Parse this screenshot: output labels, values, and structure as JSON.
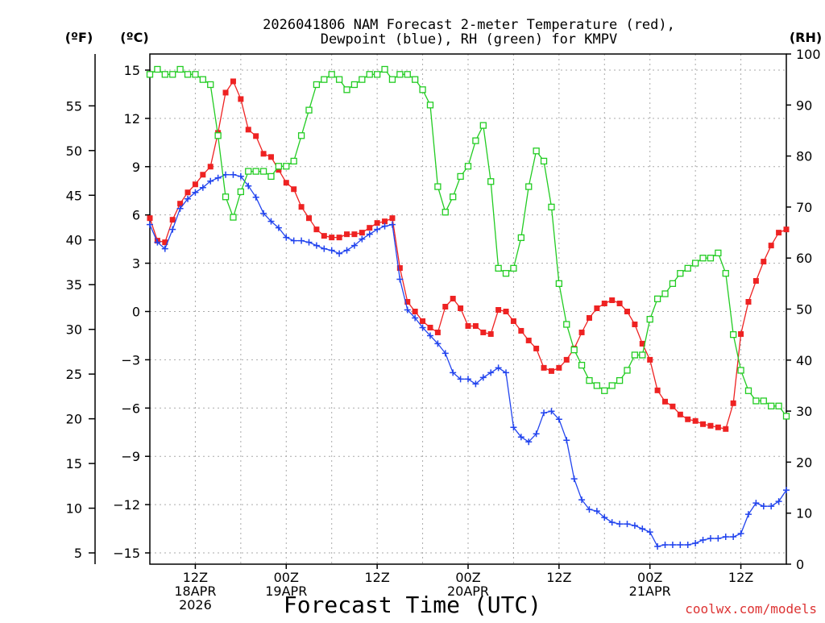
{
  "chart_data": {
    "type": "line",
    "title_line1": "2026041806 NAM Forecast 2-meter Temperature (red),",
    "title_line2": "Dewpoint (blue), RH (green) for KMPV",
    "unit_labels": {
      "fahrenheit": "(ºF)",
      "celsius": "(ºC)",
      "rh": "(RH)"
    },
    "xlabel": "Forecast Time (UTC)",
    "watermark": "coolwx.com/models",
    "x_range_hours": [
      0,
      84
    ],
    "celsius_axis": {
      "range": [
        -15.7,
        16.0
      ],
      "ticks": [
        15,
        12,
        9,
        6,
        3,
        0,
        -3,
        -6,
        -9,
        -12,
        -15
      ],
      "tick_labels": [
        "15",
        "12",
        "9",
        "6",
        "3",
        "0",
        "−3",
        "−6",
        "−9",
        "−12",
        "−15"
      ]
    },
    "fahrenheit_axis": {
      "ticks": [
        55,
        50,
        45,
        40,
        35,
        30,
        25,
        20,
        15,
        10,
        5
      ],
      "tick_labels": [
        "55",
        "50",
        "45",
        "40",
        "35",
        "30",
        "25",
        "20",
        "15",
        "10",
        "5"
      ]
    },
    "rh_axis": {
      "range": [
        0,
        100
      ],
      "ticks": [
        100,
        90,
        80,
        70,
        60,
        50,
        40,
        30,
        20,
        10,
        0
      ],
      "tick_labels": [
        "100",
        "90",
        "80",
        "70",
        "60",
        "50",
        "40",
        "30",
        "20",
        "10",
        "0"
      ]
    },
    "x_ticks": [
      {
        "hour": 6,
        "lines": [
          "12Z",
          "18APR",
          "2026"
        ]
      },
      {
        "hour": 18,
        "lines": [
          "00Z",
          "19APR"
        ]
      },
      {
        "hour": 30,
        "lines": [
          "12Z"
        ]
      },
      {
        "hour": 42,
        "lines": [
          "00Z",
          "20APR"
        ]
      },
      {
        "hour": 54,
        "lines": [
          "12Z"
        ]
      },
      {
        "hour": 66,
        "lines": [
          "00Z",
          "21APR"
        ]
      },
      {
        "hour": 78,
        "lines": [
          "12Z"
        ]
      }
    ],
    "x_grid_hours": [
      6,
      12,
      18,
      24,
      30,
      36,
      42,
      48,
      54,
      60,
      66,
      72,
      78
    ],
    "y_grid_celsius": [
      15,
      12,
      9,
      6,
      3,
      0,
      -3,
      -6,
      -9,
      -12,
      -15
    ],
    "series": [
      {
        "name": "Temperature",
        "unit": "°C",
        "color": "#ee2222",
        "marker": "filled-square",
        "x": [
          0,
          1,
          2,
          3,
          4,
          5,
          6,
          7,
          8,
          9,
          10,
          11,
          12,
          13,
          14,
          15,
          16,
          17,
          18,
          19,
          20,
          21,
          22,
          23,
          24,
          25,
          26,
          27,
          28,
          29,
          30,
          31,
          32,
          33,
          34,
          35,
          36,
          37,
          38,
          39,
          40,
          41,
          42,
          43,
          44,
          45,
          46,
          47,
          48,
          49,
          50,
          51,
          52,
          53,
          54,
          55,
          56,
          57,
          58,
          59,
          60,
          61,
          62,
          63,
          64,
          65,
          66,
          67,
          68,
          69,
          70,
          71,
          72,
          73,
          74,
          75,
          76,
          77,
          78,
          79,
          80,
          81,
          82,
          83,
          84
        ],
        "values": [
          5.8,
          4.4,
          4.3,
          5.7,
          6.7,
          7.4,
          7.9,
          8.5,
          9.0,
          11.1,
          13.6,
          14.3,
          13.2,
          11.3,
          10.9,
          9.8,
          9.6,
          8.8,
          8.0,
          7.6,
          6.5,
          5.8,
          5.1,
          4.7,
          4.6,
          4.6,
          4.8,
          4.8,
          4.9,
          5.2,
          5.5,
          5.6,
          5.8,
          2.7,
          0.6,
          0.0,
          -0.6,
          -1.0,
          -1.3,
          0.3,
          0.8,
          0.2,
          -0.9,
          -0.9,
          -1.3,
          -1.4,
          0.1,
          0.0,
          -0.6,
          -1.2,
          -1.8,
          -2.3,
          -3.5,
          -3.7,
          -3.5,
          -3.0,
          -2.3,
          -1.3,
          -0.4,
          0.2,
          0.5,
          0.7,
          0.5,
          0.0,
          -0.8,
          -2.0,
          -3.0,
          -4.9,
          -5.6,
          -5.9,
          -6.4,
          -6.7,
          -6.8,
          -7.0,
          -7.1,
          -7.2,
          -7.3,
          -5.7,
          -1.4,
          0.6,
          1.9,
          3.1,
          4.1,
          4.9,
          5.1
        ]
      },
      {
        "name": "Dewpoint",
        "unit": "°C",
        "color": "#2244ee",
        "marker": "plus",
        "x": [
          0,
          1,
          2,
          3,
          4,
          5,
          6,
          7,
          8,
          9,
          10,
          11,
          12,
          13,
          14,
          15,
          16,
          17,
          18,
          19,
          20,
          21,
          22,
          23,
          24,
          25,
          26,
          27,
          28,
          29,
          30,
          31,
          32,
          33,
          34,
          35,
          36,
          37,
          38,
          39,
          40,
          41,
          42,
          43,
          44,
          45,
          46,
          47,
          48,
          49,
          50,
          51,
          52,
          53,
          54,
          55,
          56,
          57,
          58,
          59,
          60,
          61,
          62,
          63,
          64,
          65,
          66,
          67,
          68,
          69,
          70,
          71,
          72,
          73,
          74,
          75,
          76,
          77,
          78,
          79,
          80,
          81,
          82,
          83,
          84
        ],
        "values": [
          5.4,
          4.3,
          3.9,
          5.1,
          6.4,
          7.0,
          7.4,
          7.7,
          8.1,
          8.3,
          8.5,
          8.5,
          8.4,
          7.8,
          7.1,
          6.1,
          5.6,
          5.2,
          4.6,
          4.4,
          4.4,
          4.3,
          4.1,
          3.9,
          3.8,
          3.6,
          3.8,
          4.1,
          4.5,
          4.8,
          5.1,
          5.3,
          5.4,
          2.0,
          0.1,
          -0.4,
          -1.0,
          -1.5,
          -2.0,
          -2.6,
          -3.8,
          -4.2,
          -4.2,
          -4.5,
          -4.1,
          -3.8,
          -3.5,
          -3.8,
          -7.2,
          -7.8,
          -8.1,
          -7.6,
          -6.3,
          -6.2,
          -6.7,
          -8.0,
          -10.4,
          -11.7,
          -12.3,
          -12.4,
          -12.8,
          -13.1,
          -13.2,
          -13.2,
          -13.3,
          -13.5,
          -13.7,
          -14.6,
          -14.5,
          -14.5,
          -14.5,
          -14.5,
          -14.4,
          -14.2,
          -14.1,
          -14.1,
          -14.0,
          -14.0,
          -13.8,
          -12.6,
          -11.9,
          -12.1,
          -12.1,
          -11.8,
          -11.1
        ]
      },
      {
        "name": "Relative Humidity",
        "unit": "%",
        "color": "#22cc22",
        "marker": "open-square",
        "x": [
          0,
          1,
          2,
          3,
          4,
          5,
          6,
          7,
          8,
          9,
          10,
          11,
          12,
          13,
          14,
          15,
          16,
          17,
          18,
          19,
          20,
          21,
          22,
          23,
          24,
          25,
          26,
          27,
          28,
          29,
          30,
          31,
          32,
          33,
          34,
          35,
          36,
          37,
          38,
          39,
          40,
          41,
          42,
          43,
          44,
          45,
          46,
          47,
          48,
          49,
          50,
          51,
          52,
          53,
          54,
          55,
          56,
          57,
          58,
          59,
          60,
          61,
          62,
          63,
          64,
          65,
          66,
          67,
          68,
          69,
          70,
          71,
          72,
          73,
          74,
          75,
          76,
          77,
          78,
          79,
          80,
          81,
          82,
          83,
          84
        ],
        "values": [
          96,
          97,
          96,
          96,
          97,
          96,
          96,
          95,
          94,
          84,
          72,
          68,
          73,
          77,
          77,
          77,
          76,
          78,
          78,
          79,
          84,
          89,
          94,
          95,
          96,
          95,
          93,
          94,
          95,
          96,
          96,
          97,
          95,
          96,
          96,
          95,
          93,
          90,
          74,
          69,
          72,
          76,
          78,
          83,
          86,
          75,
          58,
          57,
          58,
          64,
          74,
          81,
          79,
          70,
          55,
          47,
          42,
          39,
          36,
          35,
          34,
          35,
          36,
          38,
          41,
          41,
          48,
          52,
          53,
          55,
          57,
          58,
          59,
          60,
          60,
          61,
          57,
          45,
          38,
          34,
          32,
          32,
          31,
          31,
          29
        ]
      }
    ],
    "grid": true,
    "legend": "none"
  }
}
